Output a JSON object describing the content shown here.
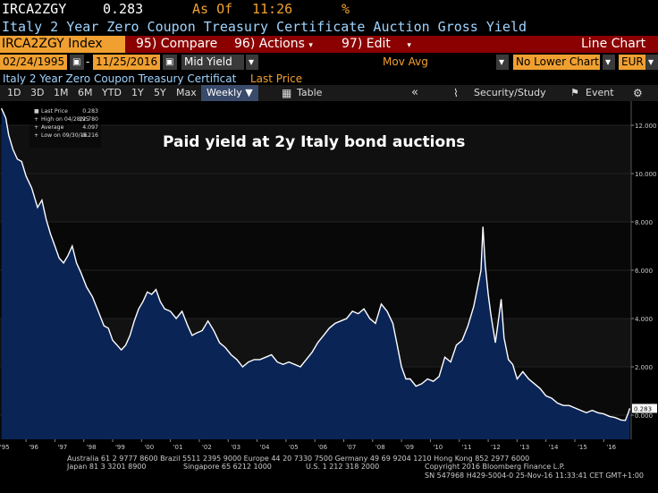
{
  "terminal": {
    "ticker": "IRCA2ZGY",
    "price": "0.283",
    "as_of_label": "As Of",
    "time": "11:26",
    "pct_icon": "percent-icon",
    "title": "Italy 2 Year Zero Coupon Treasury Certificate Auction Gross Yield",
    "security": "IRCA2ZGY Index",
    "menu": {
      "compare_num": "95)",
      "compare_label": "Compare",
      "actions_num": "96)",
      "actions_label": "Actions",
      "edit_num": "97)",
      "edit_label": "Edit",
      "chart_type": "Line Chart"
    },
    "dates": {
      "start": "02/24/1995",
      "end": "11/25/2016",
      "field": "Mid Yield",
      "study": "Mov Avg",
      "lower": "No Lower Chart",
      "currency": "EUR"
    },
    "security_line": "Italy 2 Year Zero Coupon Treasury Certificat",
    "security_line_field": "Last Price",
    "toolbar": {
      "periods": [
        "1D",
        "3D",
        "1M",
        "6M",
        "YTD",
        "1Y",
        "5Y",
        "Max"
      ],
      "freq": "Weekly ▼",
      "table": "Table",
      "security_study": "Security/Study",
      "event": "Event"
    }
  },
  "legend": {
    "last_price_label": "Last Price",
    "last_price_value": "0.283",
    "high_label": "High on 04/28/95",
    "high_value": "12.780",
    "average_label": "Average",
    "average_value": "4.097",
    "low_label": "Low on 09/30/16",
    "low_value": "-0.216"
  },
  "annotation": "Paid yield at 2y Italy bond auctions",
  "footer": {
    "line1": "Australia 61 2 9777 8600 Brazil 5511 2395 9000 Europe 44 20 7330 7500 Germany 49 69 9204 1210 Hong Kong 852 2977 6000",
    "line2a": "Japan 81 3 3201 8900",
    "line2b": "Singapore 65 6212 1000",
    "line2c": "U.S. 1 212 318 2000",
    "line2d": "Copyright 2016 Bloomberg Finance L.P.",
    "line3": "SN 547968 H429-5004-0 25-Nov-16 11:33:41 CET  GMT+1:00"
  },
  "colors": {
    "fill": "#0a2456",
    "line": "#ffffff",
    "amber": "#f0a030"
  },
  "chart_data": {
    "type": "area",
    "title": "Paid yield at 2y Italy bond auctions",
    "xlabel": "",
    "ylabel": "",
    "ylim": [
      -1,
      13
    ],
    "xlim": [
      1995.1,
      2016.95
    ],
    "yticks": [
      0,
      2,
      4,
      6,
      8,
      10,
      12
    ],
    "ytick_labels": [
      "0.000",
      "2.000",
      "4.000",
      "6.000",
      "8.000",
      "10.000",
      "12.000"
    ],
    "xticks": [
      1995,
      1996,
      1997,
      1998,
      1999,
      2000,
      2001,
      2002,
      2003,
      2004,
      2005,
      2006,
      2007,
      2008,
      2009,
      2010,
      2011,
      2012,
      2013,
      2014,
      2015,
      2016
    ],
    "xtick_labels": [
      "'95",
      "'96",
      "'97",
      "'98",
      "'99",
      "'00",
      "'01",
      "'02",
      "'03",
      "'04",
      "'05",
      "'06",
      "'07",
      "'08",
      "'09",
      "'10",
      "'11",
      "'12",
      "'13",
      "'14",
      "'15",
      "'16"
    ],
    "last_value_label": "0.283",
    "series": [
      {
        "name": "Last Price",
        "x": [
          1995.15,
          1995.3,
          1995.4,
          1995.55,
          1995.7,
          1995.85,
          1996.0,
          1996.2,
          1996.4,
          1996.55,
          1996.7,
          1996.85,
          1997.0,
          1997.15,
          1997.3,
          1997.45,
          1997.6,
          1997.75,
          1997.9,
          1998.1,
          1998.3,
          1998.5,
          1998.7,
          1998.85,
          1999.0,
          1999.15,
          1999.3,
          1999.45,
          1999.6,
          1999.75,
          1999.9,
          2000.05,
          2000.2,
          2000.35,
          2000.5,
          2000.65,
          2000.8,
          2001.0,
          2001.2,
          2001.4,
          2001.6,
          2001.75,
          2001.9,
          2002.1,
          2002.3,
          2002.5,
          2002.7,
          2002.9,
          2003.1,
          2003.3,
          2003.5,
          2003.7,
          2003.9,
          2004.1,
          2004.3,
          2004.5,
          2004.7,
          2004.9,
          2005.1,
          2005.3,
          2005.5,
          2005.7,
          2005.9,
          2006.1,
          2006.3,
          2006.5,
          2006.7,
          2006.9,
          2007.1,
          2007.3,
          2007.5,
          2007.7,
          2007.9,
          2008.1,
          2008.3,
          2008.5,
          2008.7,
          2008.85,
          2009.0,
          2009.15,
          2009.3,
          2009.5,
          2009.7,
          2009.9,
          2010.1,
          2010.3,
          2010.5,
          2010.7,
          2010.9,
          2011.1,
          2011.3,
          2011.5,
          2011.65,
          2011.75,
          2011.82,
          2011.9,
          2012.0,
          2012.1,
          2012.25,
          2012.35,
          2012.45,
          2012.55,
          2012.7,
          2012.85,
          2013.0,
          2013.2,
          2013.4,
          2013.6,
          2013.8,
          2014.0,
          2014.2,
          2014.4,
          2014.6,
          2014.8,
          2015.0,
          2015.2,
          2015.4,
          2015.6,
          2015.8,
          2016.0,
          2016.2,
          2016.4,
          2016.6,
          2016.75,
          2016.85,
          2016.9
        ],
        "values": [
          12.7,
          12.3,
          11.6,
          11.0,
          10.6,
          10.5,
          9.9,
          9.4,
          8.6,
          8.9,
          8.1,
          7.5,
          7.0,
          6.5,
          6.3,
          6.6,
          7.0,
          6.3,
          5.9,
          5.3,
          4.9,
          4.3,
          3.7,
          3.6,
          3.1,
          2.9,
          2.7,
          2.9,
          3.3,
          3.9,
          4.4,
          4.7,
          5.1,
          5.0,
          5.2,
          4.7,
          4.4,
          4.3,
          4.0,
          4.3,
          3.7,
          3.3,
          3.4,
          3.5,
          3.9,
          3.5,
          3.0,
          2.8,
          2.5,
          2.3,
          2.0,
          2.2,
          2.3,
          2.3,
          2.4,
          2.5,
          2.2,
          2.1,
          2.2,
          2.1,
          2.0,
          2.3,
          2.6,
          3.0,
          3.3,
          3.6,
          3.8,
          3.9,
          4.0,
          4.3,
          4.2,
          4.4,
          4.0,
          3.8,
          4.6,
          4.3,
          3.8,
          2.9,
          2.0,
          1.5,
          1.5,
          1.2,
          1.3,
          1.5,
          1.4,
          1.6,
          2.4,
          2.2,
          2.9,
          3.1,
          3.7,
          4.5,
          5.4,
          6.0,
          7.8,
          6.2,
          5.0,
          4.1,
          3.0,
          3.9,
          4.8,
          3.2,
          2.3,
          2.1,
          1.5,
          1.8,
          1.5,
          1.3,
          1.1,
          0.8,
          0.7,
          0.5,
          0.4,
          0.4,
          0.3,
          0.2,
          0.1,
          0.2,
          0.1,
          0.05,
          -0.05,
          -0.1,
          -0.2,
          -0.22,
          0.1,
          0.28
        ]
      }
    ]
  }
}
